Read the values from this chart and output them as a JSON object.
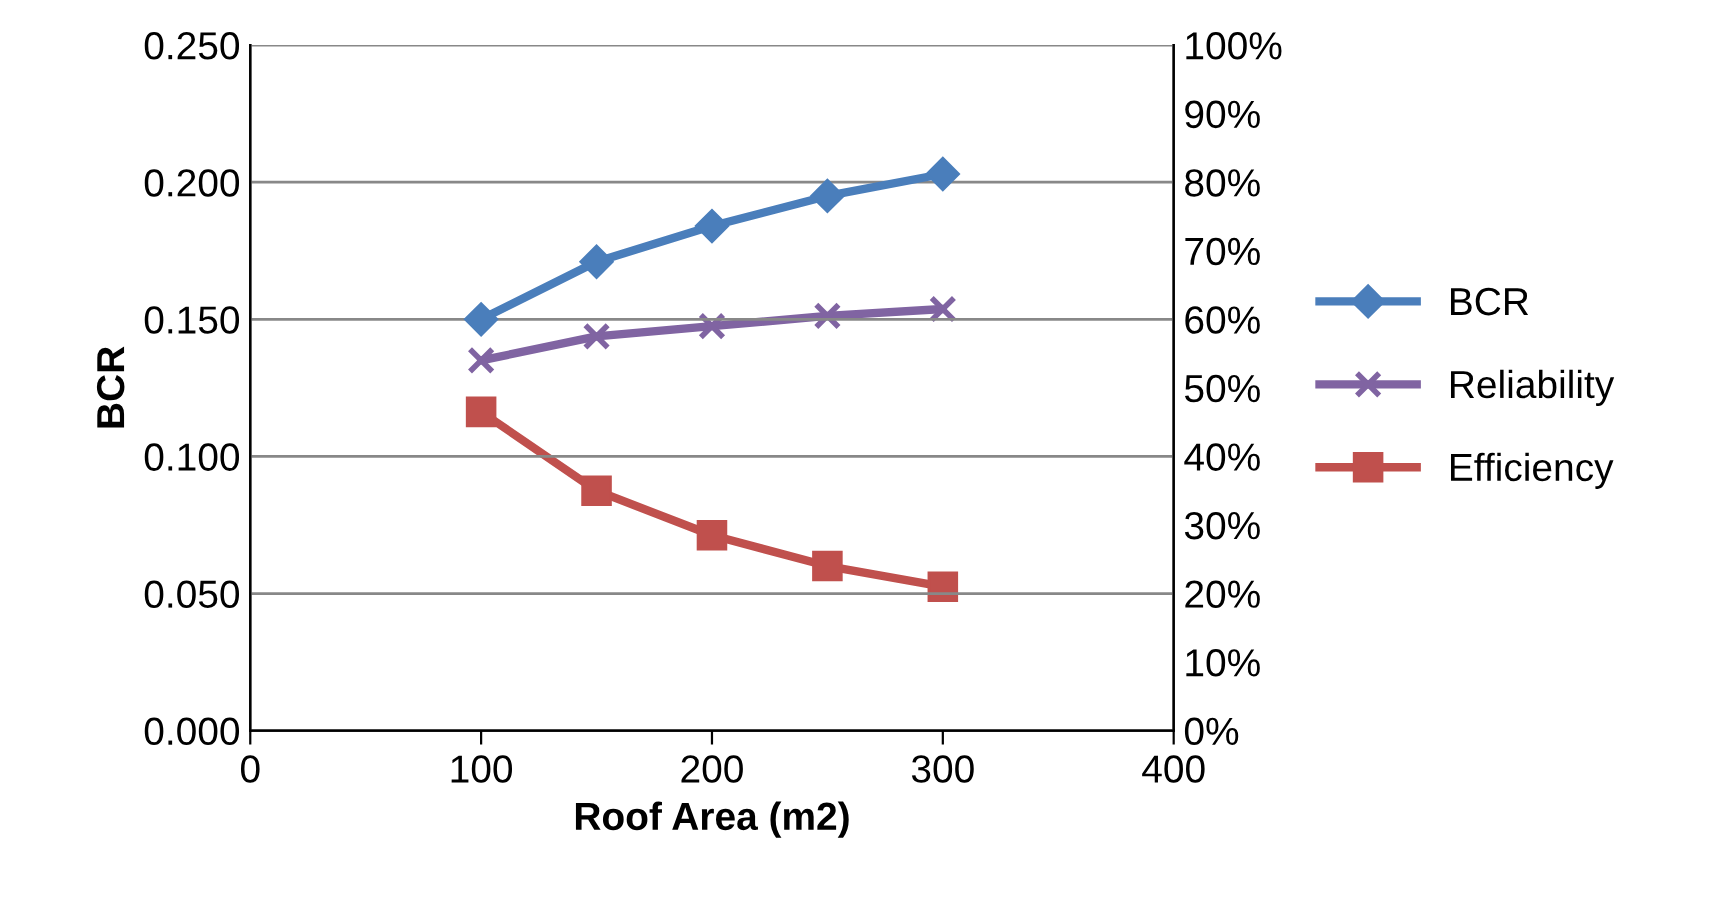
{
  "chart_data": {
    "type": "line",
    "xlabel": "Roof Area (m2)",
    "ylabel": "BCR",
    "x": [
      100,
      150,
      200,
      250,
      300
    ],
    "series": [
      {
        "name": "BCR",
        "color": "#4a7ebb",
        "marker": "diamond",
        "values": [
          0.15,
          0.171,
          0.184,
          0.195,
          0.203
        ]
      },
      {
        "name": "Reliability",
        "color": "#8064a2",
        "marker": "cross",
        "axis": "y2",
        "values": [
          54,
          57.5,
          59,
          60.5,
          61.5
        ]
      },
      {
        "name": "Efficiency",
        "color": "#c0504d",
        "marker": "square",
        "axis": "y2",
        "values": [
          46.5,
          35,
          28.5,
          24,
          21
        ]
      }
    ],
    "xlim": [
      0,
      400
    ],
    "xticks": [
      0,
      100,
      200,
      300,
      400
    ],
    "ylim": [
      0,
      0.25
    ],
    "yticks": [
      {
        "value": 0,
        "label": "0.000"
      },
      {
        "value": 0.05,
        "label": "0.050"
      },
      {
        "value": 0.1,
        "label": "0.100"
      },
      {
        "value": 0.15,
        "label": "0.150"
      },
      {
        "value": 0.2,
        "label": "0.200"
      },
      {
        "value": 0.25,
        "label": "0.250"
      }
    ],
    "y2lim": [
      0,
      100
    ],
    "y2ticks": [
      {
        "value": 0,
        "label": "0%"
      },
      {
        "value": 10,
        "label": "10%"
      },
      {
        "value": 20,
        "label": "20%"
      },
      {
        "value": 30,
        "label": "30%"
      },
      {
        "value": 40,
        "label": "40%"
      },
      {
        "value": 50,
        "label": "50%"
      },
      {
        "value": 60,
        "label": "60%"
      },
      {
        "value": 70,
        "label": "70%"
      },
      {
        "value": 80,
        "label": "80%"
      },
      {
        "value": 90,
        "label": "90%"
      },
      {
        "value": 100,
        "label": "100%"
      }
    ],
    "grid": "y",
    "legend": "right",
    "line_style": "solid"
  }
}
